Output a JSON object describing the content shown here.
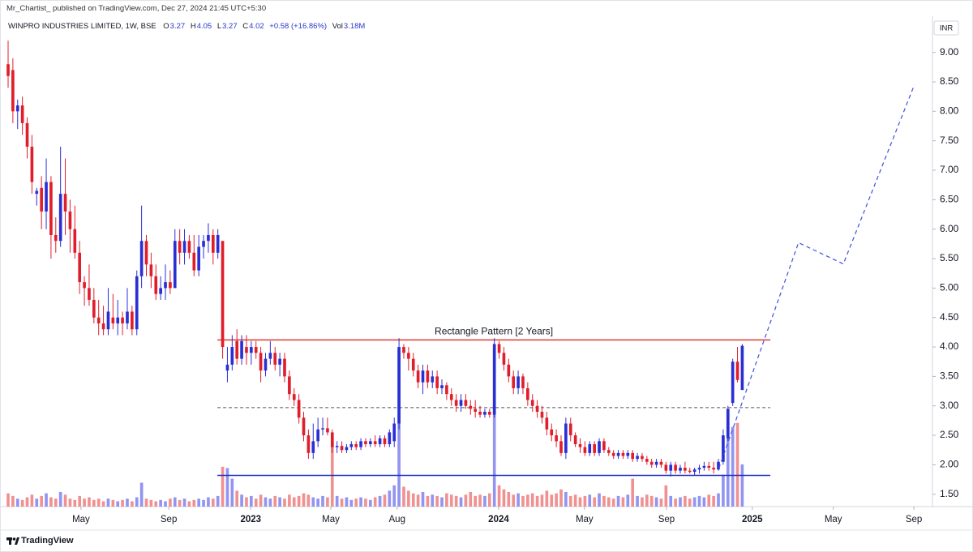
{
  "chart_data": {
    "type": "candlestick",
    "attribution": "Mr_Chartist_ published on TradingView.com, Dec 27, 2024 21:45 UTC+5:30",
    "title": "WINPRO INDUSTRIES LIMITED, 1W, BSE",
    "ohlc_letters": [
      "O",
      "H",
      "L",
      "C"
    ],
    "change": "+0.58 (+16.86%)",
    "volume_label": "Vol",
    "volume_last_label": "3.18M",
    "currency": "INR",
    "branding": "TradingView",
    "up_color": "#2a2fd4",
    "down_color": "#e01e2b",
    "volume_up_color": "#8c8ff0",
    "volume_down_color": "#f08c8c",
    "candles": [
      [
        8.8,
        9.2,
        8.4,
        8.6
      ],
      [
        8.7,
        8.9,
        7.8,
        8.0
      ],
      [
        8.0,
        8.2,
        7.7,
        8.1
      ],
      [
        8.1,
        8.25,
        7.6,
        7.8
      ],
      [
        7.8,
        7.9,
        7.2,
        7.4
      ],
      [
        7.4,
        7.6,
        6.6,
        6.8
      ],
      [
        6.6,
        6.7,
        6.4,
        6.65
      ],
      [
        6.7,
        6.9,
        6.0,
        6.3
      ],
      [
        6.3,
        7.2,
        6.0,
        6.8
      ],
      [
        6.8,
        6.9,
        5.5,
        5.9
      ],
      [
        5.9,
        6.2,
        5.6,
        5.8
      ],
      [
        5.8,
        7.4,
        5.7,
        6.6
      ],
      [
        6.6,
        7.2,
        5.9,
        6.3
      ],
      [
        6.3,
        6.5,
        5.6,
        6.0
      ],
      [
        6.0,
        6.4,
        5.5,
        5.6
      ],
      [
        5.6,
        5.8,
        4.9,
        5.1
      ],
      [
        5.1,
        5.2,
        4.7,
        5.0
      ],
      [
        5.0,
        5.4,
        4.7,
        4.8
      ],
      [
        4.8,
        5.0,
        4.4,
        4.5
      ],
      [
        4.5,
        4.8,
        4.2,
        4.4
      ],
      [
        4.4,
        4.7,
        4.2,
        4.3
      ],
      [
        4.3,
        5.0,
        4.2,
        4.6
      ],
      [
        4.5,
        4.9,
        4.3,
        4.4
      ],
      [
        4.4,
        4.8,
        4.2,
        4.5
      ],
      [
        4.5,
        4.6,
        4.2,
        4.4
      ],
      [
        4.4,
        5.0,
        4.3,
        4.6
      ],
      [
        4.6,
        4.7,
        4.2,
        4.3
      ],
      [
        4.3,
        5.3,
        4.2,
        5.2
      ],
      [
        5.2,
        6.4,
        5.0,
        5.8
      ],
      [
        5.8,
        5.9,
        5.2,
        5.4
      ],
      [
        5.4,
        5.6,
        5.0,
        5.2
      ],
      [
        5.2,
        5.4,
        4.8,
        4.9
      ],
      [
        4.9,
        5.2,
        4.8,
        5.0
      ],
      [
        5.0,
        5.4,
        4.8,
        5.1
      ],
      [
        5.1,
        5.3,
        4.9,
        5.0
      ],
      [
        5.0,
        6.0,
        5.0,
        5.8
      ],
      [
        5.8,
        6.0,
        5.4,
        5.6
      ],
      [
        5.6,
        6.0,
        5.4,
        5.8
      ],
      [
        5.8,
        5.9,
        5.5,
        5.6
      ],
      [
        5.6,
        5.9,
        5.2,
        5.3
      ],
      [
        5.3,
        5.9,
        5.2,
        5.7
      ],
      [
        5.7,
        5.9,
        5.5,
        5.8
      ],
      [
        5.8,
        6.1,
        5.6,
        5.9
      ],
      [
        5.9,
        6.0,
        5.4,
        5.6
      ],
      [
        5.6,
        6.0,
        5.5,
        5.9
      ],
      [
        5.8,
        5.8,
        3.8,
        4.0
      ],
      [
        3.6,
        4.0,
        3.4,
        3.7
      ],
      [
        3.7,
        4.2,
        3.6,
        4.0
      ],
      [
        4.1,
        4.3,
        3.7,
        3.8
      ],
      [
        3.8,
        4.2,
        3.7,
        4.1
      ],
      [
        4.0,
        4.2,
        3.7,
        3.9
      ],
      [
        3.9,
        4.1,
        3.7,
        4.0
      ],
      [
        4.0,
        4.1,
        3.8,
        3.9
      ],
      [
        3.9,
        4.0,
        3.4,
        3.6
      ],
      [
        3.6,
        3.9,
        3.5,
        3.8
      ],
      [
        3.8,
        4.1,
        3.7,
        3.9
      ],
      [
        3.9,
        4.0,
        3.6,
        3.7
      ],
      [
        3.7,
        3.9,
        3.5,
        3.8
      ],
      [
        3.8,
        3.9,
        3.4,
        3.5
      ],
      [
        3.5,
        3.6,
        3.1,
        3.2
      ],
      [
        3.2,
        3.3,
        3.0,
        3.1
      ],
      [
        3.1,
        3.2,
        2.7,
        2.8
      ],
      [
        2.8,
        2.9,
        2.4,
        2.5
      ],
      [
        2.5,
        2.6,
        2.1,
        2.2
      ],
      [
        2.2,
        2.7,
        2.1,
        2.4
      ],
      [
        2.4,
        2.8,
        2.3,
        2.6
      ],
      [
        2.6,
        2.8,
        2.5,
        2.62
      ],
      [
        2.62,
        2.8,
        2.5,
        2.55
      ],
      [
        2.55,
        2.6,
        2.2,
        2.3
      ],
      [
        2.3,
        2.4,
        2.2,
        2.32
      ],
      [
        2.32,
        2.4,
        2.2,
        2.25
      ],
      [
        2.25,
        2.35,
        2.2,
        2.3
      ],
      [
        2.3,
        2.4,
        2.25,
        2.35
      ],
      [
        2.35,
        2.4,
        2.25,
        2.3
      ],
      [
        2.3,
        2.45,
        2.25,
        2.4
      ],
      [
        2.4,
        2.45,
        2.3,
        2.35
      ],
      [
        2.35,
        2.45,
        2.3,
        2.4
      ],
      [
        2.4,
        2.5,
        2.3,
        2.35
      ],
      [
        2.35,
        2.5,
        2.3,
        2.45
      ],
      [
        2.45,
        2.5,
        2.3,
        2.35
      ],
      [
        2.35,
        2.6,
        2.3,
        2.55
      ],
      [
        2.4,
        2.8,
        2.3,
        2.7
      ],
      [
        2.7,
        4.15,
        2.6,
        4.0
      ],
      [
        4.0,
        4.05,
        3.8,
        3.9
      ],
      [
        3.9,
        4.0,
        3.6,
        3.8
      ],
      [
        3.8,
        3.9,
        3.5,
        3.6
      ],
      [
        3.6,
        3.7,
        3.3,
        3.4
      ],
      [
        3.4,
        3.7,
        3.2,
        3.6
      ],
      [
        3.6,
        3.7,
        3.3,
        3.4
      ],
      [
        3.4,
        3.6,
        3.3,
        3.5
      ],
      [
        3.5,
        3.6,
        3.2,
        3.3
      ],
      [
        3.3,
        3.45,
        3.2,
        3.35
      ],
      [
        3.35,
        3.4,
        3.1,
        3.2
      ],
      [
        3.2,
        3.3,
        3.0,
        3.1
      ],
      [
        3.1,
        3.2,
        2.9,
        3.0
      ],
      [
        3.0,
        3.2,
        2.9,
        3.1
      ],
      [
        3.1,
        3.2,
        2.95,
        3.0
      ],
      [
        3.0,
        3.1,
        2.85,
        2.95
      ],
      [
        2.95,
        3.1,
        2.8,
        2.9
      ],
      [
        2.9,
        3.0,
        2.8,
        2.85
      ],
      [
        2.85,
        2.95,
        2.8,
        2.9
      ],
      [
        2.9,
        2.95,
        2.8,
        2.85
      ],
      [
        2.85,
        4.15,
        2.8,
        4.05
      ],
      [
        4.05,
        4.1,
        3.8,
        3.9
      ],
      [
        3.9,
        4.0,
        3.6,
        3.7
      ],
      [
        3.7,
        3.8,
        3.4,
        3.5
      ],
      [
        3.5,
        3.6,
        3.2,
        3.3
      ],
      [
        3.3,
        3.6,
        3.2,
        3.5
      ],
      [
        3.5,
        3.55,
        3.2,
        3.3
      ],
      [
        3.3,
        3.4,
        3.0,
        3.1
      ],
      [
        3.1,
        3.2,
        2.9,
        3.0
      ],
      [
        3.0,
        3.1,
        2.8,
        2.9
      ],
      [
        2.9,
        3.0,
        2.7,
        2.8
      ],
      [
        2.8,
        2.9,
        2.5,
        2.6
      ],
      [
        2.6,
        2.7,
        2.4,
        2.5
      ],
      [
        2.5,
        2.6,
        2.3,
        2.4
      ],
      [
        2.4,
        2.5,
        2.15,
        2.2
      ],
      [
        2.2,
        2.8,
        2.1,
        2.7
      ],
      [
        2.7,
        2.8,
        2.4,
        2.5
      ],
      [
        2.5,
        2.55,
        2.3,
        2.35
      ],
      [
        2.35,
        2.45,
        2.2,
        2.3
      ],
      [
        2.3,
        2.4,
        2.15,
        2.2
      ],
      [
        2.2,
        2.4,
        2.15,
        2.35
      ],
      [
        2.35,
        2.4,
        2.15,
        2.2
      ],
      [
        2.2,
        2.45,
        2.15,
        2.4
      ],
      [
        2.4,
        2.45,
        2.2,
        2.25
      ],
      [
        2.25,
        2.3,
        2.15,
        2.2
      ],
      [
        2.2,
        2.25,
        2.1,
        2.15
      ],
      [
        2.15,
        2.25,
        2.1,
        2.2
      ],
      [
        2.2,
        2.25,
        2.1,
        2.15
      ],
      [
        2.15,
        2.25,
        2.1,
        2.2
      ],
      [
        2.2,
        2.25,
        2.05,
        2.1
      ],
      [
        2.1,
        2.2,
        2.05,
        2.15
      ],
      [
        2.15,
        2.2,
        2.05,
        2.1
      ],
      [
        2.1,
        2.15,
        2.0,
        2.05
      ],
      [
        2.05,
        2.1,
        1.95,
        2.0
      ],
      [
        2.0,
        2.1,
        1.95,
        2.05
      ],
      [
        2.05,
        2.1,
        1.95,
        2.0
      ],
      [
        2.0,
        2.05,
        1.85,
        1.9
      ],
      [
        1.9,
        2.05,
        1.8,
        2.0
      ],
      [
        2.0,
        2.05,
        1.85,
        1.9
      ],
      [
        1.9,
        2.0,
        1.85,
        1.95
      ],
      [
        1.95,
        2.05,
        1.85,
        1.9
      ],
      [
        1.9,
        1.95,
        1.85,
        1.88
      ],
      [
        1.88,
        1.95,
        1.82,
        1.92
      ],
      [
        1.92,
        2.0,
        1.85,
        1.95
      ],
      [
        1.95,
        2.05,
        1.9,
        1.98
      ],
      [
        1.98,
        2.05,
        1.9,
        1.95
      ],
      [
        1.95,
        2.05,
        1.85,
        1.92
      ],
      [
        1.92,
        2.1,
        1.9,
        2.05
      ],
      [
        2.05,
        2.6,
        2.0,
        2.5
      ],
      [
        2.45,
        3.0,
        2.4,
        2.95
      ],
      [
        3.05,
        3.8,
        3.0,
        3.75
      ],
      [
        3.75,
        4.0,
        3.4,
        3.44
      ],
      [
        3.27,
        4.05,
        3.27,
        4.02
      ]
    ],
    "volume": [
      1.0,
      0.8,
      0.6,
      0.5,
      0.7,
      0.9,
      0.6,
      0.8,
      1.0,
      0.7,
      0.6,
      1.1,
      0.9,
      0.6,
      0.5,
      0.8,
      0.6,
      0.7,
      0.5,
      0.6,
      0.4,
      0.6,
      0.5,
      0.4,
      0.5,
      0.6,
      0.4,
      0.7,
      1.8,
      0.6,
      0.5,
      0.4,
      0.5,
      0.4,
      0.6,
      0.7,
      0.5,
      0.6,
      0.4,
      0.5,
      0.6,
      0.5,
      0.7,
      0.6,
      0.8,
      3.0,
      2.9,
      2.1,
      1.2,
      0.9,
      0.7,
      0.8,
      0.6,
      0.9,
      0.7,
      0.6,
      0.8,
      0.7,
      0.6,
      0.9,
      0.7,
      0.8,
      1.0,
      0.9,
      0.7,
      0.6,
      0.8,
      0.7,
      4.9,
      0.8,
      0.6,
      0.7,
      0.5,
      0.6,
      0.7,
      0.6,
      0.5,
      0.7,
      0.8,
      0.9,
      1.2,
      1.6,
      11.8,
      1.5,
      1.2,
      1.0,
      0.9,
      1.1,
      0.8,
      0.9,
      0.8,
      0.7,
      1.0,
      0.9,
      0.8,
      0.7,
      0.9,
      1.1,
      0.8,
      0.9,
      0.8,
      1.0,
      11.9,
      1.6,
      1.3,
      1.1,
      0.9,
      1.0,
      0.8,
      0.9,
      1.0,
      0.8,
      0.9,
      1.2,
      0.9,
      1.0,
      1.3,
      1.1,
      0.8,
      0.9,
      0.7,
      0.8,
      0.9,
      0.7,
      1.0,
      0.8,
      0.7,
      0.6,
      0.8,
      0.7,
      0.9,
      2.1,
      0.8,
      0.7,
      0.9,
      0.8,
      0.7,
      0.6,
      1.6,
      0.8,
      0.6,
      0.7,
      0.8,
      0.6,
      0.7,
      0.8,
      0.7,
      0.9,
      0.8,
      1.0,
      2.4,
      7.3,
      6.0,
      6.3,
      3.18
    ],
    "xlim": [
      -1.7,
      193.9
    ],
    "xticks": [
      {
        "value": 15.3,
        "label": "May"
      },
      {
        "value": 33.7,
        "label": "Sep"
      },
      {
        "value": 50.9,
        "label": "2023"
      },
      {
        "value": 67.7,
        "label": "May"
      },
      {
        "value": 81.6,
        "label": "Aug"
      },
      {
        "value": 102.9,
        "label": "2024"
      },
      {
        "value": 120.9,
        "label": "May"
      },
      {
        "value": 138.1,
        "label": "Sep"
      },
      {
        "value": 156.1,
        "label": "2025"
      },
      {
        "value": 173.1,
        "label": "May"
      },
      {
        "value": 190.0,
        "label": "Sep"
      }
    ],
    "ylim": [
      1.29,
      9.89
    ],
    "yticks": [
      {
        "value": 1.5,
        "label": "1.50"
      },
      {
        "value": 2,
        "label": "2.00"
      },
      {
        "value": 2.5,
        "label": "2.50"
      },
      {
        "value": 3,
        "label": "3.00"
      },
      {
        "value": 3.5,
        "label": "3.50"
      },
      {
        "value": 4,
        "label": "4.00"
      },
      {
        "value": 4.5,
        "label": "4.50"
      },
      {
        "value": 5,
        "label": "5.00"
      },
      {
        "value": 5.5,
        "label": "5.50"
      },
      {
        "value": 6,
        "label": "6.00"
      },
      {
        "value": 6.5,
        "label": "6.50"
      },
      {
        "value": 7,
        "label": "7.00"
      },
      {
        "value": 7.5,
        "label": "7.50"
      },
      {
        "value": 8,
        "label": "8.00"
      },
      {
        "value": 8.5,
        "label": "8.50"
      },
      {
        "value": 9,
        "label": "9.00"
      }
    ],
    "grid": false,
    "levels": [
      {
        "value": 4.12,
        "from": 43.9,
        "to": 159.9,
        "color": "#e53935",
        "dashed": false,
        "label": "Rectangle Pattern [2 Years]"
      },
      {
        "value": 2.97,
        "from": 43.9,
        "to": 159.9,
        "color": "#555555",
        "dashed": true
      },
      {
        "value": 1.82,
        "from": 43.9,
        "to": 159.9,
        "color": "#1e2fc0",
        "dashed": false
      }
    ],
    "projection": {
      "x": [
        149.1,
        165.8,
        175.2,
        190.1
      ],
      "y": [
        1.94,
        5.77,
        5.41,
        8.45
      ],
      "color": "#3f4fe0",
      "dashed": true
    }
  }
}
